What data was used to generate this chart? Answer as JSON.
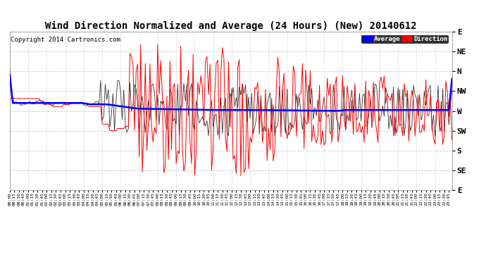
{
  "title": "Wind Direction Normalized and Average (24 Hours) (New) 20140612",
  "copyright": "Copyright 2014 Cartronics.com",
  "legend_labels": [
    "Average",
    "Direction"
  ],
  "legend_colors": [
    "#0000ff",
    "#ff0000"
  ],
  "ytick_labels": [
    "E",
    "NE",
    "N",
    "NW",
    "W",
    "SW",
    "S",
    "SE",
    "E"
  ],
  "ytick_values": [
    0,
    45,
    90,
    135,
    180,
    225,
    270,
    315,
    360
  ],
  "background_color": "#ffffff",
  "plot_bg_color": "#ffffff",
  "grid_color": "#cccccc",
  "avg_color": "#0000ff",
  "dir_color": "#ff0000",
  "dark_color": "#333333",
  "title_fontsize": 10,
  "copyright_fontsize": 6.5
}
